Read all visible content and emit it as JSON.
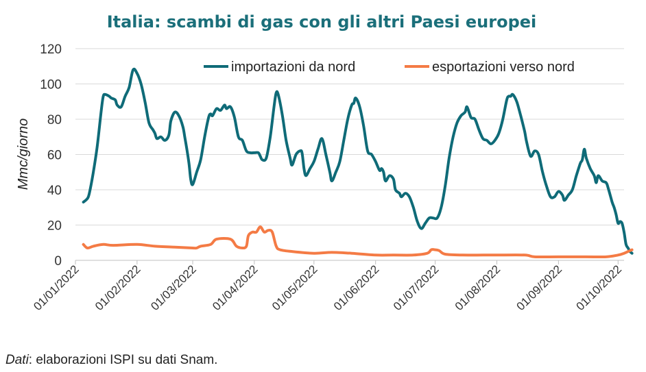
{
  "chart_data": {
    "type": "line",
    "title": "Italia: scambi di gas con gli altri Paesi europei",
    "ylabel": "Mmc/giorno",
    "xlabel": "",
    "ylim": [
      0,
      120
    ],
    "yticks": [
      0,
      20,
      40,
      60,
      80,
      100,
      120
    ],
    "xlim": [
      "2022-01-01",
      "2022-10-04"
    ],
    "xticks": [
      "01/01/2022",
      "01/02/2022",
      "01/03/2022",
      "01/04/2022",
      "01/05/2022",
      "01/06/2022",
      "01/07/2022",
      "01/08/2022",
      "01/09/2022",
      "01/10/2022"
    ],
    "grid": "horizontal",
    "legend_position": "top",
    "source_label": "Dati",
    "source_text": ": elaborazioni ISPI su dati Snam.",
    "series": [
      {
        "name": "importazioni da nord",
        "color": "#0f6b78",
        "points": [
          [
            "2022-01-05",
            33
          ],
          [
            "2022-01-07",
            35
          ],
          [
            "2022-01-08",
            38
          ],
          [
            "2022-01-10",
            50
          ],
          [
            "2022-01-12",
            65
          ],
          [
            "2022-01-14",
            85
          ],
          [
            "2022-01-15",
            93
          ],
          [
            "2022-01-16",
            94
          ],
          [
            "2022-01-18",
            93
          ],
          [
            "2022-01-19",
            92
          ],
          [
            "2022-01-21",
            91
          ],
          [
            "2022-01-22",
            88
          ],
          [
            "2022-01-24",
            87
          ],
          [
            "2022-01-26",
            93
          ],
          [
            "2022-01-28",
            98
          ],
          [
            "2022-01-30",
            108
          ],
          [
            "2022-02-01",
            106
          ],
          [
            "2022-02-03",
            100
          ],
          [
            "2022-02-05",
            90
          ],
          [
            "2022-02-07",
            78
          ],
          [
            "2022-02-09",
            74
          ],
          [
            "2022-02-10",
            72
          ],
          [
            "2022-02-11",
            69
          ],
          [
            "2022-02-13",
            70
          ],
          [
            "2022-02-15",
            68
          ],
          [
            "2022-02-17",
            71
          ],
          [
            "2022-02-18",
            79
          ],
          [
            "2022-02-20",
            84
          ],
          [
            "2022-02-22",
            82
          ],
          [
            "2022-02-24",
            76
          ],
          [
            "2022-02-25",
            70
          ],
          [
            "2022-02-27",
            56
          ],
          [
            "2022-02-28",
            46
          ],
          [
            "2022-03-01",
            43
          ],
          [
            "2022-03-03",
            50
          ],
          [
            "2022-03-05",
            57
          ],
          [
            "2022-03-07",
            70
          ],
          [
            "2022-03-09",
            81
          ],
          [
            "2022-03-10",
            83
          ],
          [
            "2022-03-11",
            82
          ],
          [
            "2022-03-13",
            86
          ],
          [
            "2022-03-15",
            85
          ],
          [
            "2022-03-17",
            88
          ],
          [
            "2022-03-18",
            86
          ],
          [
            "2022-03-20",
            87
          ],
          [
            "2022-03-22",
            81
          ],
          [
            "2022-03-24",
            70
          ],
          [
            "2022-03-26",
            68
          ],
          [
            "2022-03-28",
            62
          ],
          [
            "2022-03-30",
            61
          ],
          [
            "2022-04-01",
            61
          ],
          [
            "2022-04-03",
            61
          ],
          [
            "2022-04-04",
            59
          ],
          [
            "2022-04-05",
            57
          ],
          [
            "2022-04-07",
            58
          ],
          [
            "2022-04-09",
            70
          ],
          [
            "2022-04-11",
            88
          ],
          [
            "2022-04-12",
            95
          ],
          [
            "2022-04-13",
            94
          ],
          [
            "2022-04-15",
            83
          ],
          [
            "2022-04-17",
            68
          ],
          [
            "2022-04-19",
            58
          ],
          [
            "2022-04-20",
            54
          ],
          [
            "2022-04-22",
            60
          ],
          [
            "2022-04-24",
            62
          ],
          [
            "2022-04-25",
            61
          ],
          [
            "2022-04-26",
            52
          ],
          [
            "2022-04-27",
            48
          ],
          [
            "2022-04-29",
            52
          ],
          [
            "2022-05-01",
            56
          ],
          [
            "2022-05-03",
            63
          ],
          [
            "2022-05-05",
            69
          ],
          [
            "2022-05-07",
            60
          ],
          [
            "2022-05-09",
            50
          ],
          [
            "2022-05-10",
            45
          ],
          [
            "2022-05-12",
            50
          ],
          [
            "2022-05-14",
            56
          ],
          [
            "2022-05-16",
            68
          ],
          [
            "2022-05-18",
            80
          ],
          [
            "2022-05-20",
            88
          ],
          [
            "2022-05-21",
            89
          ],
          [
            "2022-05-22",
            92
          ],
          [
            "2022-05-24",
            87
          ],
          [
            "2022-05-26",
            76
          ],
          [
            "2022-05-28",
            62
          ],
          [
            "2022-05-30",
            60
          ],
          [
            "2022-06-01",
            56
          ],
          [
            "2022-06-03",
            51
          ],
          [
            "2022-06-04",
            52
          ],
          [
            "2022-06-05",
            50
          ],
          [
            "2022-06-06",
            45
          ],
          [
            "2022-06-08",
            48
          ],
          [
            "2022-06-10",
            46
          ],
          [
            "2022-06-11",
            40
          ],
          [
            "2022-06-13",
            38
          ],
          [
            "2022-06-14",
            36
          ],
          [
            "2022-06-16",
            38
          ],
          [
            "2022-06-18",
            36
          ],
          [
            "2022-06-20",
            30
          ],
          [
            "2022-06-22",
            22
          ],
          [
            "2022-06-24",
            18
          ],
          [
            "2022-06-26",
            21
          ],
          [
            "2022-06-28",
            24
          ],
          [
            "2022-06-30",
            24
          ],
          [
            "2022-07-02",
            24
          ],
          [
            "2022-07-04",
            30
          ],
          [
            "2022-07-06",
            42
          ],
          [
            "2022-07-08",
            58
          ],
          [
            "2022-07-10",
            70
          ],
          [
            "2022-07-12",
            78
          ],
          [
            "2022-07-14",
            82
          ],
          [
            "2022-07-16",
            84
          ],
          [
            "2022-07-17",
            87
          ],
          [
            "2022-07-19",
            81
          ],
          [
            "2022-07-21",
            80
          ],
          [
            "2022-07-23",
            74
          ],
          [
            "2022-07-25",
            69
          ],
          [
            "2022-07-27",
            68
          ],
          [
            "2022-07-29",
            66
          ],
          [
            "2022-07-31",
            68
          ],
          [
            "2022-08-02",
            72
          ],
          [
            "2022-08-04",
            80
          ],
          [
            "2022-08-06",
            91
          ],
          [
            "2022-08-07",
            93
          ],
          [
            "2022-08-08",
            93
          ],
          [
            "2022-08-09",
            94
          ],
          [
            "2022-08-11",
            90
          ],
          [
            "2022-08-13",
            82
          ],
          [
            "2022-08-15",
            73
          ],
          [
            "2022-08-16",
            67
          ],
          [
            "2022-08-18",
            59
          ],
          [
            "2022-08-20",
            62
          ],
          [
            "2022-08-22",
            60
          ],
          [
            "2022-08-24",
            50
          ],
          [
            "2022-08-26",
            42
          ],
          [
            "2022-08-28",
            36
          ],
          [
            "2022-08-30",
            36
          ],
          [
            "2022-09-01",
            39
          ],
          [
            "2022-09-03",
            37
          ],
          [
            "2022-09-04",
            34
          ],
          [
            "2022-09-06",
            37
          ],
          [
            "2022-09-08",
            40
          ],
          [
            "2022-09-10",
            48
          ],
          [
            "2022-09-12",
            55
          ],
          [
            "2022-09-13",
            57
          ],
          [
            "2022-09-14",
            63
          ],
          [
            "2022-09-15",
            58
          ],
          [
            "2022-09-17",
            52
          ],
          [
            "2022-09-19",
            48
          ],
          [
            "2022-09-20",
            44
          ],
          [
            "2022-09-21",
            48
          ],
          [
            "2022-09-23",
            45
          ],
          [
            "2022-09-25",
            44
          ],
          [
            "2022-09-26",
            41
          ],
          [
            "2022-09-28",
            33
          ],
          [
            "2022-09-29",
            30
          ],
          [
            "2022-09-30",
            26
          ],
          [
            "2022-10-01",
            21
          ],
          [
            "2022-10-02",
            22
          ],
          [
            "2022-10-03",
            21
          ],
          [
            "2022-10-04",
            16
          ],
          [
            "2022-10-05",
            9
          ],
          [
            "2022-10-06",
            7
          ],
          [
            "2022-10-07",
            5
          ],
          [
            "2022-10-08",
            4
          ]
        ]
      },
      {
        "name": "esportazioni verso nord",
        "color": "#f47b45",
        "points": [
          [
            "2022-01-05",
            9
          ],
          [
            "2022-01-07",
            7
          ],
          [
            "2022-01-10",
            8
          ],
          [
            "2022-01-15",
            9
          ],
          [
            "2022-01-20",
            8.5
          ],
          [
            "2022-02-01",
            9
          ],
          [
            "2022-02-10",
            8
          ],
          [
            "2022-02-20",
            7.5
          ],
          [
            "2022-03-01",
            7
          ],
          [
            "2022-03-03",
            7
          ],
          [
            "2022-03-05",
            8
          ],
          [
            "2022-03-10",
            9
          ],
          [
            "2022-03-13",
            12
          ],
          [
            "2022-03-20",
            12
          ],
          [
            "2022-03-23",
            8
          ],
          [
            "2022-03-26",
            7
          ],
          [
            "2022-03-28",
            8
          ],
          [
            "2022-03-29",
            14
          ],
          [
            "2022-03-31",
            16
          ],
          [
            "2022-04-02",
            16
          ],
          [
            "2022-04-04",
            19
          ],
          [
            "2022-04-06",
            16
          ],
          [
            "2022-04-08",
            17
          ],
          [
            "2022-04-10",
            16
          ],
          [
            "2022-04-12",
            8
          ],
          [
            "2022-04-14",
            6
          ],
          [
            "2022-04-20",
            5
          ],
          [
            "2022-05-01",
            4
          ],
          [
            "2022-05-10",
            4.5
          ],
          [
            "2022-05-20",
            4
          ],
          [
            "2022-06-01",
            3
          ],
          [
            "2022-06-10",
            3
          ],
          [
            "2022-06-20",
            3
          ],
          [
            "2022-06-27",
            4
          ],
          [
            "2022-06-29",
            6
          ],
          [
            "2022-07-01",
            6
          ],
          [
            "2022-07-03",
            5.5
          ],
          [
            "2022-07-06",
            3.5
          ],
          [
            "2022-07-15",
            3
          ],
          [
            "2022-07-25",
            3
          ],
          [
            "2022-08-01",
            3
          ],
          [
            "2022-08-15",
            3
          ],
          [
            "2022-08-20",
            2
          ],
          [
            "2022-09-01",
            2
          ],
          [
            "2022-09-15",
            2
          ],
          [
            "2022-09-25",
            2
          ],
          [
            "2022-10-01",
            3
          ],
          [
            "2022-10-04",
            4
          ],
          [
            "2022-10-06",
            5
          ],
          [
            "2022-10-08",
            6
          ]
        ]
      }
    ]
  }
}
